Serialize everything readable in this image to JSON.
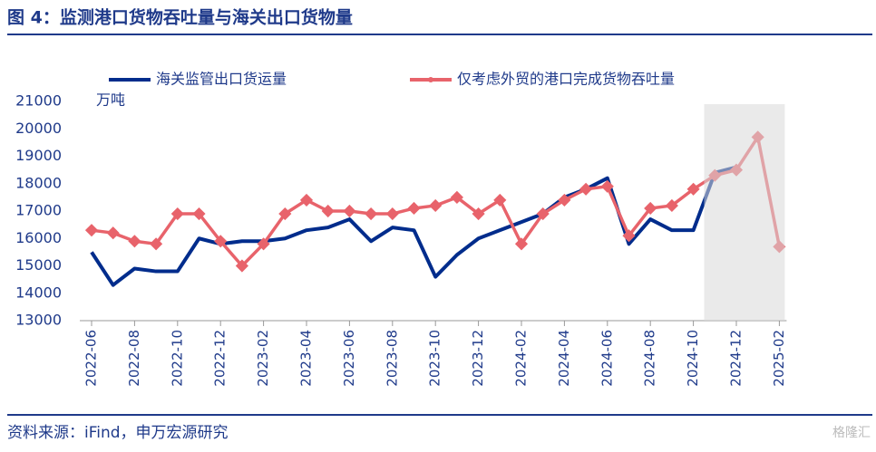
{
  "chart_data": {
    "type": "line",
    "title": "图 4：监测港口货物吞吐量与海关出口货物量",
    "y_label": "万吨",
    "source": "资料来源：iFind，申万宏源研究",
    "watermark": "格隆汇",
    "categories": [
      "2022-06",
      null,
      "2022-08",
      null,
      "2022-10",
      null,
      "2022-12",
      null,
      "2023-02",
      null,
      "2023-04",
      null,
      "2023-06",
      null,
      "2023-08",
      null,
      "2023-10",
      null,
      "2023-12",
      null,
      "2024-02",
      null,
      "2024-04",
      null,
      "2024-06",
      null,
      "2024-08",
      null,
      "2024-10",
      null,
      "2024-12",
      null,
      "2025-02"
    ],
    "series": [
      {
        "name": "海关监管出口货运量",
        "color": "#002c8c",
        "values": [
          15500,
          14300,
          14900,
          14800,
          14800,
          16000,
          15800,
          15900,
          15900,
          16000,
          16300,
          16400,
          16700,
          15900,
          16400,
          16300,
          14600,
          15400,
          16000,
          16300,
          16600,
          16900,
          17500,
          17800,
          18200,
          15800,
          16700,
          16300,
          16300,
          18400,
          18600,
          null,
          null
        ]
      },
      {
        "name": "仅考虑外贸的港口完成货物吞吐量",
        "color": "#e8636b",
        "values": [
          16300,
          16200,
          15900,
          15800,
          16900,
          16900,
          15900,
          15000,
          15800,
          16900,
          17400,
          17000,
          17000,
          16900,
          16900,
          17100,
          17200,
          17500,
          16900,
          17400,
          15800,
          16900,
          17400,
          17800,
          17900,
          16100,
          17100,
          17200,
          17800,
          18300,
          18500,
          19700,
          15700
        ]
      }
    ],
    "ylim": [
      13000,
      21000
    ],
    "yticks": [
      13000,
      14000,
      15000,
      16000,
      17000,
      18000,
      19000,
      20000,
      21000
    ]
  }
}
